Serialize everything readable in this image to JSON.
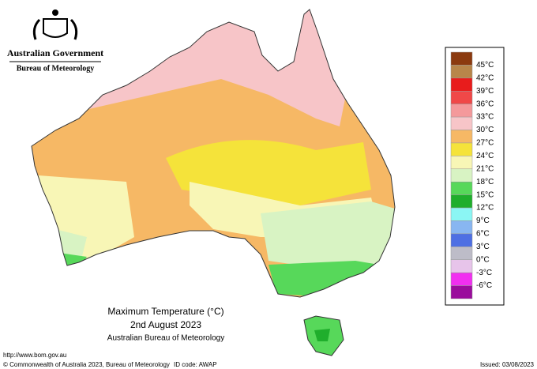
{
  "header": {
    "government": "Australian Government",
    "bureau": "Bureau of Meteorology"
  },
  "title": {
    "line1": "Maximum Temperature (°C)",
    "line2": "2nd August 2023",
    "line3": "Australian Bureau of Meteorology"
  },
  "legend": {
    "swatches": [
      "#8b3a0f",
      "#b8864a",
      "#e81c1c",
      "#f04848",
      "#f4999b",
      "#f7c5c8",
      "#f6b865",
      "#f5e33a",
      "#f8f6b6",
      "#d8f3c3",
      "#57d85a",
      "#1fae2c",
      "#8bf6f4",
      "#88b6f1",
      "#4e6fe3",
      "#bdbcc8",
      "#e7c4ea",
      "#f12ff0",
      "#9a0c9c"
    ],
    "labels": [
      "45°C",
      "42°C",
      "39°C",
      "36°C",
      "33°C",
      "30°C",
      "27°C",
      "24°C",
      "21°C",
      "18°C",
      "15°C",
      "12°C",
      "9°C",
      "6°C",
      "3°C",
      "0°C",
      "-3°C",
      "-6°C"
    ]
  },
  "footer": {
    "url": "http://www.bom.gov.au",
    "copyright": "© Commonwealth of Australia 2023, Bureau of Meteorology",
    "id": "ID code: AWAP",
    "issued": "Issued: 03/08/2023"
  }
}
